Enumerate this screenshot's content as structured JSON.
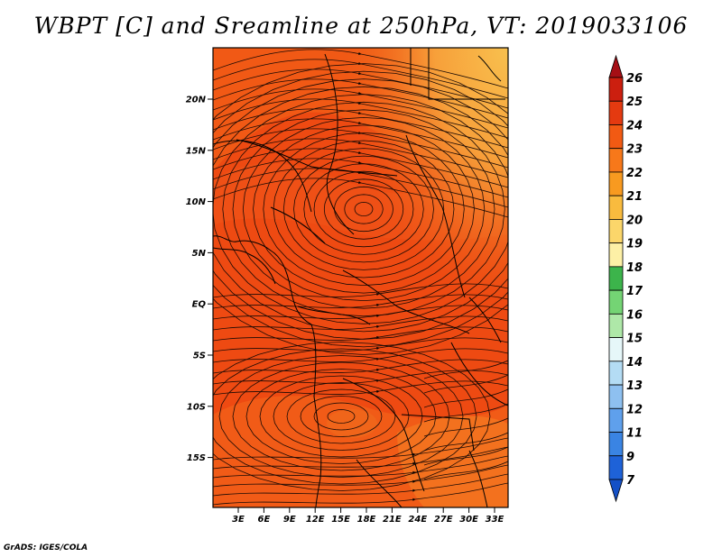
{
  "title": "WBPT [C] and Sreamline at 250hPa, VT: 2019033106",
  "credit": "GrADS: IGES/COLA",
  "map": {
    "field": "WBPT",
    "units": "C",
    "level": "250hPa",
    "valid_time": "2019033106",
    "lat_ticks": [
      "20N",
      "15N",
      "10N",
      "5N",
      "EQ",
      "5S",
      "10S",
      "15S"
    ],
    "lon_ticks": [
      "3E",
      "6E",
      "9E",
      "12E",
      "15E",
      "18E",
      "21E",
      "24E",
      "27E",
      "30E",
      "33E"
    ],
    "colors": {
      "dominant": "#ee4a12",
      "warm_band": "#f3661a",
      "cool_corner": "#f8b042",
      "frame": "#000000"
    }
  },
  "colorbar": {
    "labels": [
      "26",
      "25",
      "24",
      "23",
      "22",
      "21",
      "20",
      "19",
      "18",
      "17",
      "16",
      "15",
      "14",
      "13",
      "12",
      "11",
      "9",
      "7"
    ],
    "colors": [
      "#a50f15",
      "#cc1f0f",
      "#e43a10",
      "#f25a13",
      "#f7781a",
      "#f89a20",
      "#f9bb3e",
      "#fbd66a",
      "#fdf0a6",
      "#3cb44b",
      "#74d474",
      "#aee8a8",
      "#e6f7f9",
      "#b4dcf4",
      "#8ec0f0",
      "#5fa0ec",
      "#3a84e3",
      "#1e62d8",
      "#1450c6"
    ]
  }
}
